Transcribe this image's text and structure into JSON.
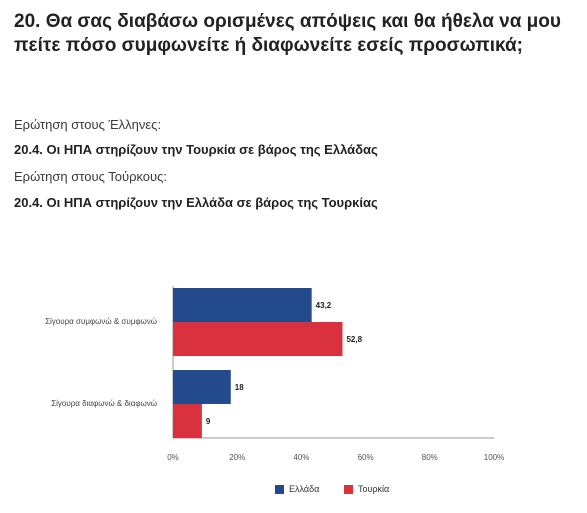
{
  "question": {
    "title": "20. Θα σας διαβάσω ορισμένες απόψεις και θα ήθελα να μου πείτε πόσο συμφωνείτε ή διαφωνείτε εσείς προσωπικά;",
    "greeks_label": "Ερώτηση στους Έλληνες:",
    "greeks_statement": "20.4. Οι ΗΠΑ στηρίζουν την Τουρκία σε βάρος της Ελλάδας",
    "turks_label": "Ερώτηση στους Τούρκους:",
    "turks_statement": "20.4. Οι ΗΠΑ στηρίζουν την Ελλάδα σε βάρος της Τουρκίας"
  },
  "colors": {
    "greece": "#234a8c",
    "turkey": "#d9323e",
    "axis": "#9a9a9a"
  },
  "chart_data": {
    "type": "bar",
    "orientation": "horizontal",
    "categories": [
      "Σίγουρα συμφωνώ & συμφωνώ",
      "Σίγουρα διαφωνώ & διαφωνώ"
    ],
    "series": [
      {
        "name": "Ελλάδα",
        "values": [
          43.2,
          18
        ],
        "labels": [
          "43,2",
          "18"
        ]
      },
      {
        "name": "Τουρκία",
        "values": [
          52.8,
          9
        ],
        "labels": [
          "52,8",
          "9"
        ]
      }
    ],
    "xlim": [
      0,
      100
    ],
    "xticks": [
      0,
      20,
      40,
      60,
      80,
      100
    ],
    "xtick_labels": [
      "0%",
      "20%",
      "40%",
      "60%",
      "80%",
      "100%"
    ],
    "grid": false,
    "legend_position": "bottom"
  }
}
